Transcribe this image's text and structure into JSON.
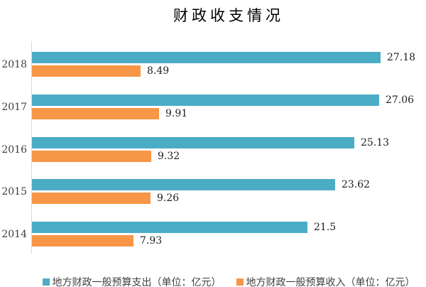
{
  "chart_data": {
    "type": "bar",
    "orientation": "horizontal",
    "title": "财政收支情况",
    "categories": [
      "2018",
      "2017",
      "2016",
      "2015",
      "2014"
    ],
    "categories_order": "top-to-bottom",
    "series": [
      {
        "name": "地方财政一般预算支出（单位：亿元）",
        "color": "#4BACC6",
        "values": [
          27.18,
          27.06,
          25.13,
          23.62,
          21.5
        ]
      },
      {
        "name": "地方财政一般预算收入（单位：亿元）",
        "color": "#F79646",
        "values": [
          8.49,
          9.91,
          9.32,
          9.26,
          7.93
        ]
      }
    ],
    "xlim": [
      0,
      30.2
    ],
    "grid": false,
    "value_labels_shown": true,
    "legend_position": "bottom",
    "axis_color": "#D9D9D9",
    "background": "#FFFFFF"
  }
}
